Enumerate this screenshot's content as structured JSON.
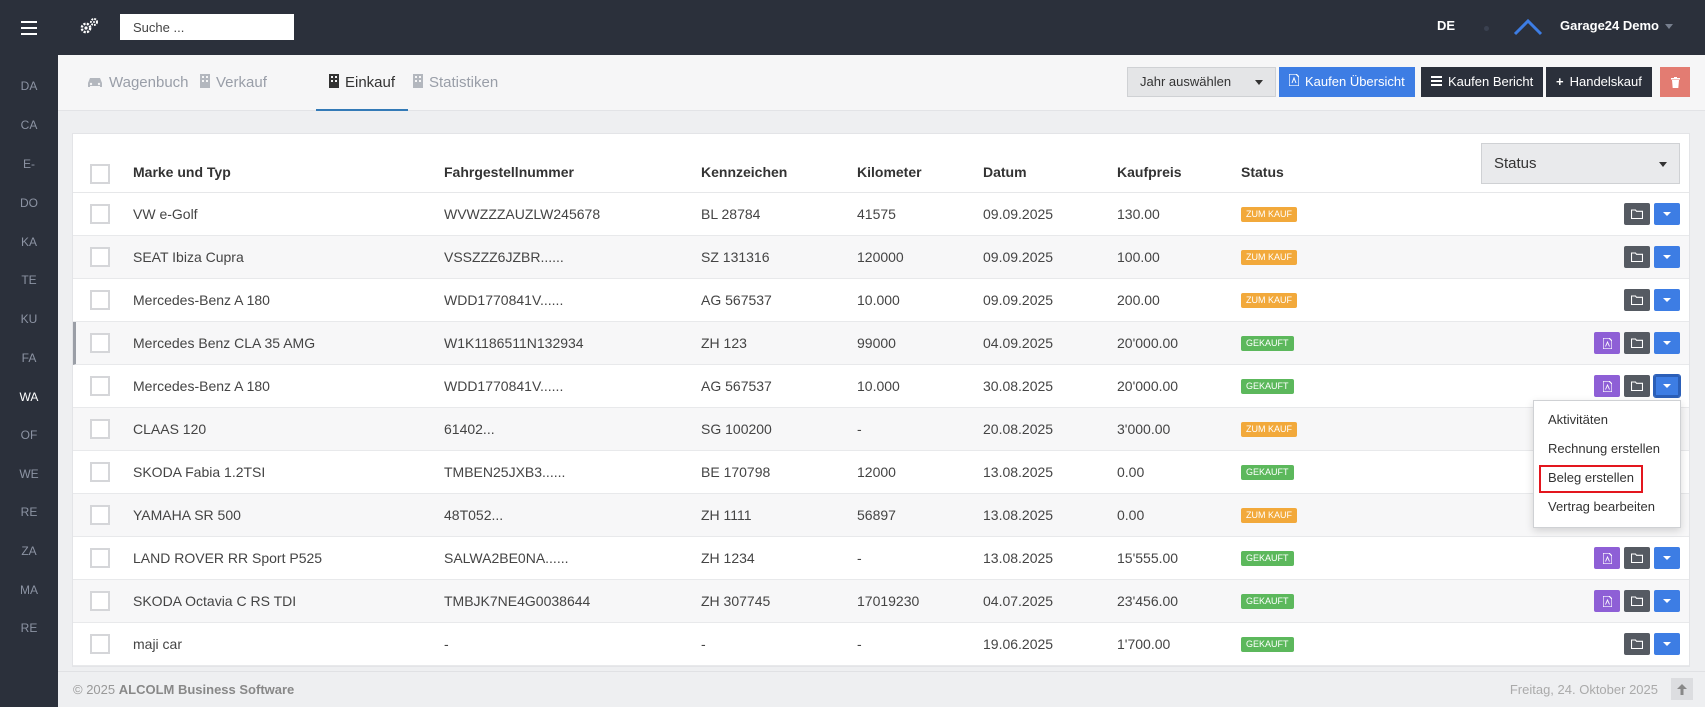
{
  "topbar": {
    "search_placeholder": "Suche ...",
    "language": "DE",
    "user": "Garage24 Demo"
  },
  "sidebar": {
    "items": [
      "DA",
      "CA",
      "E-",
      "DO",
      "KA",
      "TE",
      "KU",
      "FA",
      "WA",
      "OF",
      "WE",
      "RE",
      "ZA",
      "MA",
      "RE"
    ],
    "active": "WA"
  },
  "tabs": [
    {
      "label": "Wagenbuch",
      "icon": "car-icon"
    },
    {
      "label": "Verkauf",
      "icon": "building-icon"
    },
    {
      "label": "Einkauf",
      "icon": "building-icon",
      "active": true
    },
    {
      "label": "Statistiken",
      "icon": "building-icon"
    }
  ],
  "toolbar": {
    "year_select": "Jahr auswählen",
    "overview_btn": "Kaufen Übersicht",
    "report_btn": "Kaufen Bericht",
    "purchase_btn": "Handelskauf"
  },
  "filter": {
    "status_select": "Status"
  },
  "table": {
    "headers": [
      "Marke und Typ",
      "Fahrgestellnummer",
      "Kennzeichen",
      "Kilometer",
      "Datum",
      "Kaufpreis",
      "Status"
    ],
    "rows": [
      {
        "brand": "VW e-Golf",
        "vin": "WVWZZZAUZLW245678",
        "plate": "BL 28784",
        "km": "41575",
        "date": "09.09.2025",
        "price": "130.00",
        "status": "ZUM KAUF"
      },
      {
        "brand": "SEAT Ibiza Cupra",
        "vin": "VSSZZZ6JZBR......",
        "plate": "SZ 131316",
        "km": "120000",
        "date": "09.09.2025",
        "price": "100.00",
        "status": "ZUM KAUF"
      },
      {
        "brand": "Mercedes-Benz A 180",
        "vin": "WDD1770841V......",
        "plate": "AG 567537",
        "km": "10.000",
        "date": "09.09.2025",
        "price": "200.00",
        "status": "ZUM KAUF"
      },
      {
        "brand": "Mercedes Benz CLA 35 AMG",
        "vin": "W1K1186511N132934",
        "plate": "ZH 123",
        "km": "99000",
        "date": "04.09.2025",
        "price": "20'000.00",
        "status": "GEKAUFT"
      },
      {
        "brand": "Mercedes-Benz A 180",
        "vin": "WDD1770841V......",
        "plate": "AG 567537",
        "km": "10.000",
        "date": "30.08.2025",
        "price": "20'000.00",
        "status": "GEKAUFT"
      },
      {
        "brand": "CLAAS 120",
        "vin": "61402...",
        "plate": "SG 100200",
        "km": "-",
        "date": "20.08.2025",
        "price": "3'000.00",
        "status": "ZUM KAUF"
      },
      {
        "brand": "SKODA Fabia 1.2TSI",
        "vin": "TMBEN25JXB3......",
        "plate": "BE 170798",
        "km": "12000",
        "date": "13.08.2025",
        "price": "0.00",
        "status": "GEKAUFT"
      },
      {
        "brand": "YAMAHA SR 500",
        "vin": "48T052...",
        "plate": "ZH 1111",
        "km": "56897",
        "date": "13.08.2025",
        "price": "0.00",
        "status": "ZUM KAUF"
      },
      {
        "brand": "LAND ROVER RR Sport P525",
        "vin": "SALWA2BE0NA......",
        "plate": "ZH 1234",
        "km": "-",
        "date": "13.08.2025",
        "price": "15'555.00",
        "status": "GEKAUFT"
      },
      {
        "brand": "SKODA Octavia C RS TDI",
        "vin": "TMBJK7NE4G0038644",
        "plate": "ZH 307745",
        "km": "17019230",
        "date": "04.07.2025",
        "price": "23'456.00",
        "status": "GEKAUFT"
      },
      {
        "brand": "maji car",
        "vin": "-",
        "plate": "-",
        "km": "-",
        "date": "19.06.2025",
        "price": "1'700.00",
        "status": "GEKAUFT"
      }
    ]
  },
  "dropdown": {
    "items": [
      "Aktivitäten",
      "Rechnung erstellen",
      "Beleg erstellen",
      "Vertrag bearbeiten"
    ],
    "highlighted": "Beleg erstellen"
  },
  "footer": {
    "copyright_prefix": "© 2025",
    "company": "ALCOLM Business Software",
    "date": "Freitag, 24. Oktober 2025"
  },
  "colors": {
    "dark": "#2b303b",
    "blue": "#3d7de4",
    "purple": "#8e5fd6",
    "gray_button": "#555a62",
    "status_buy": "#f2a93b",
    "status_bought": "#5cb85c",
    "highlight": "#e3161e"
  }
}
